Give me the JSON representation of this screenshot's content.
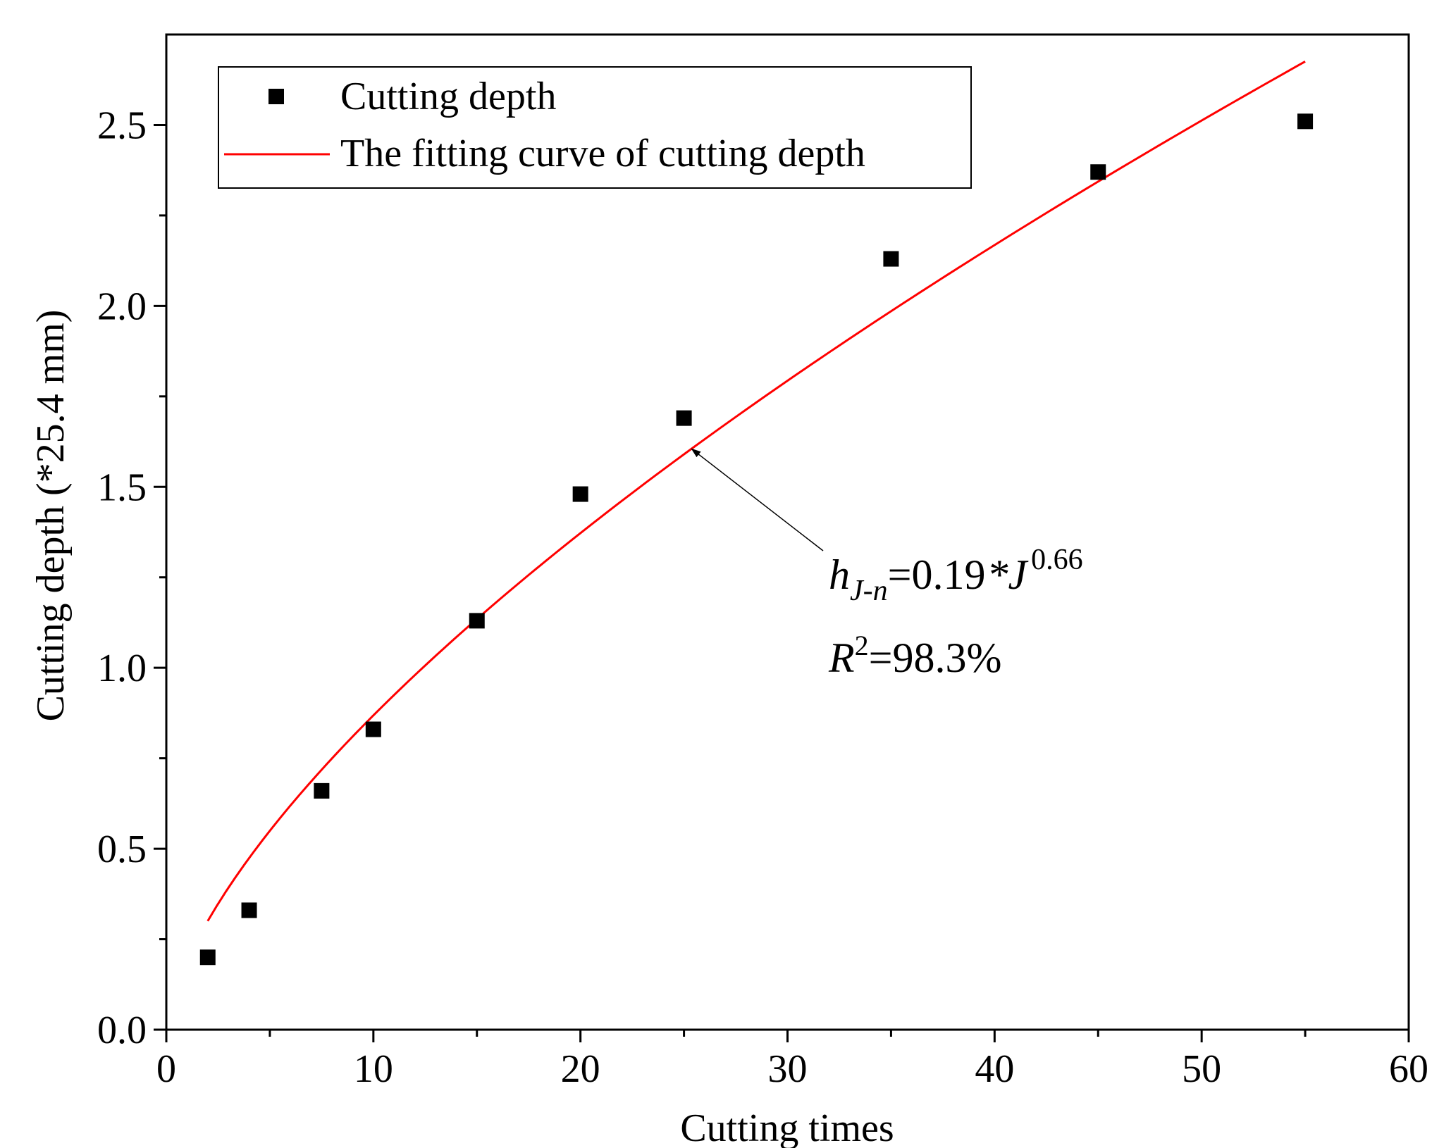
{
  "chart_data": {
    "type": "scatter",
    "title": "",
    "xlabel": "Cutting times",
    "ylabel": "Cutting depth (*25.4 mm)",
    "xlim": [
      0,
      60
    ],
    "ylim": [
      0,
      2.75
    ],
    "xticks": [
      0,
      10,
      20,
      30,
      40,
      50,
      60
    ],
    "xtick_labels": [
      "0",
      "10",
      "20",
      "30",
      "40",
      "50",
      "60"
    ],
    "yticks": [
      0,
      0.5,
      1.0,
      1.5,
      2.0,
      2.5
    ],
    "ytick_labels": [
      "0.0",
      "0.5",
      "1.0",
      "1.5",
      "2.0",
      "2.5"
    ],
    "grid": false,
    "legend": "top-left",
    "series": [
      {
        "name": "Cutting depth",
        "kind": "scatter",
        "marker": "square",
        "color": "#000000",
        "x": [
          2,
          4,
          7.5,
          10,
          15,
          20,
          25,
          35,
          45,
          55
        ],
        "y": [
          0.2,
          0.33,
          0.66,
          0.83,
          1.13,
          1.48,
          1.69,
          2.13,
          2.37,
          2.51
        ]
      },
      {
        "name": "The fitting curve of cutting depth",
        "kind": "line",
        "color": "#ff0000",
        "model": {
          "coefficient": 0.19,
          "exponent": 0.66
        },
        "x_range": [
          2,
          55
        ]
      }
    ],
    "annotations": {
      "equation": {
        "lhs": "h",
        "lhs_subscript": "J-n",
        "rhs": "=0.19",
        "operator": "*",
        "variable": "J",
        "exponent": "0.66"
      },
      "r_squared": {
        "symbol": "R",
        "power": "2",
        "value": "=98.3%"
      },
      "arrow_target_x": 25.5
    }
  }
}
